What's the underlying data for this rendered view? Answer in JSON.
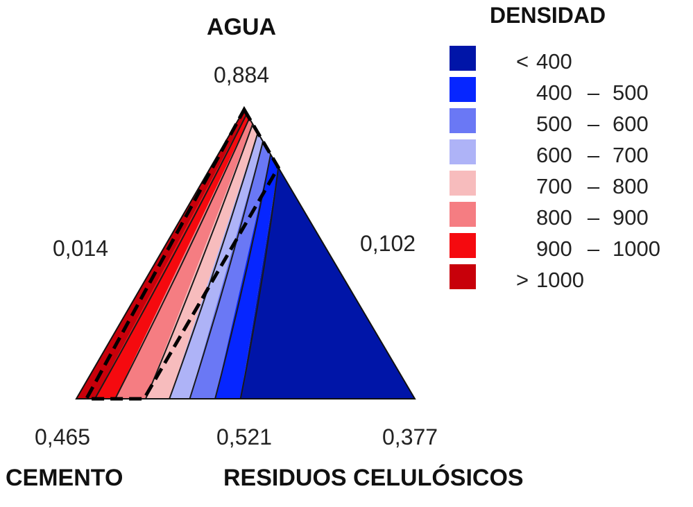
{
  "chart_data": {
    "type": "ternary-contour",
    "vertices": {
      "top": {
        "name": "AGUA",
        "value": "0,884"
      },
      "left": {
        "name": "CEMENTO",
        "value": "0,465"
      },
      "right": {
        "name": "RESIDUOS CELULÓSICOS",
        "value": "0,377"
      }
    },
    "edge_labels": {
      "left": "0,014",
      "right": "0,102",
      "bottom": "0,521"
    },
    "legend": {
      "title": "DENSIDAD",
      "placement": "right",
      "items": [
        {
          "op": "<",
          "lo": "400",
          "dash": "",
          "hi": "",
          "color": "#0015a8"
        },
        {
          "op": "",
          "lo": "400",
          "dash": "–",
          "hi": "500",
          "color": "#0626ff"
        },
        {
          "op": "",
          "lo": "500",
          "dash": "–",
          "hi": "600",
          "color": "#6a78f5"
        },
        {
          "op": "",
          "lo": "600",
          "dash": "–",
          "hi": "700",
          "color": "#aeb3f7"
        },
        {
          "op": "",
          "lo": "700",
          "dash": "–",
          "hi": "800",
          "color": "#f7bcbd"
        },
        {
          "op": "",
          "lo": "800",
          "dash": "–",
          "hi": "900",
          "color": "#f57d82"
        },
        {
          "op": "",
          "lo": "900",
          "dash": "–",
          "hi": "1000",
          "color": "#f50a0f"
        },
        {
          "op": ">",
          "lo": "1000",
          "dash": "",
          "hi": "",
          "color": "#c8000a"
        }
      ]
    },
    "contour_boundaries_bottom_fraction": [
      0.055,
      0.115,
      0.205,
      0.275,
      0.335,
      0.41,
      0.485
    ],
    "contour_boundaries_top_fraction": [
      0.015,
      0.03,
      0.05,
      0.08,
      0.11,
      0.155,
      0.2
    ],
    "dashed_subregion": {
      "apex_fraction": 0.0,
      "right_edge_point_fraction": 0.2,
      "bottom_left_fraction": 0.03,
      "bottom_right_fraction": 0.2
    }
  }
}
